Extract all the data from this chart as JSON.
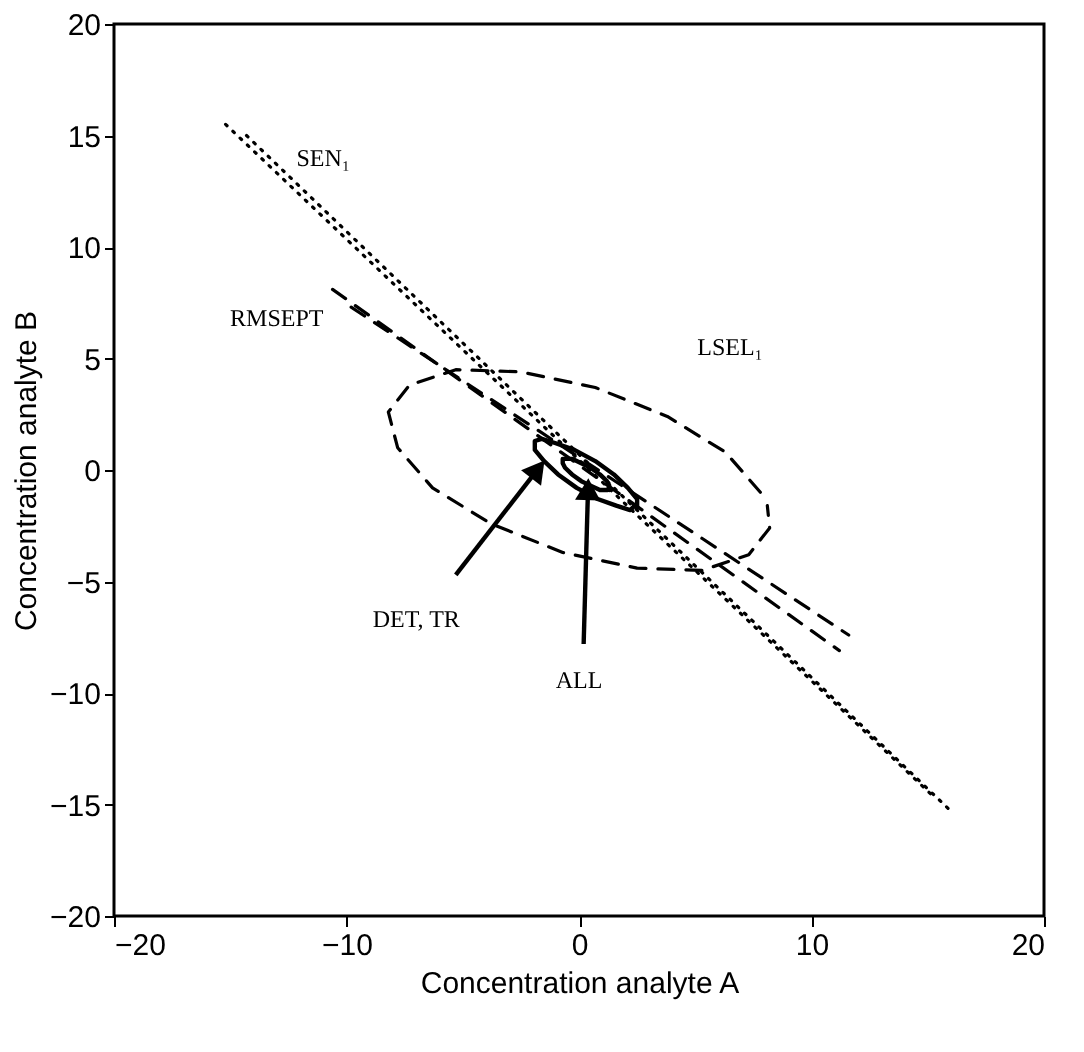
{
  "chart_data": {
    "type": "line",
    "xlabel": "Concentration analyte A",
    "ylabel": "Concentration analyte B",
    "xlim": [
      -20,
      20
    ],
    "ylim": [
      -20,
      20
    ],
    "xticks": [
      -20,
      -10,
      0,
      10,
      20
    ],
    "yticks": [
      -20,
      -15,
      -10,
      -5,
      0,
      5,
      10,
      15,
      20
    ],
    "grid": false,
    "marker": "none",
    "series": [
      {
        "color": "#000000",
        "line_style": "dotted",
        "x": [
          -15.2,
          15.2
        ],
        "values": [
          15.5,
          -14.6
        ]
      },
      {
        "color": "#000000",
        "line_style": "dotted",
        "x": [
          -14.3,
          16.0
        ],
        "values": [
          15.0,
          -15.3
        ]
      },
      {
        "color": "#000000",
        "line_style": "dashed",
        "x": [
          -10.6,
          11.2
        ],
        "values": [
          8.1,
          -8.1
        ]
      },
      {
        "color": "#000000",
        "line_style": "dashed",
        "x": [
          -9.8,
          11.6
        ],
        "values": [
          7.3,
          -7.4
        ]
      },
      {
        "color": "#000000",
        "line_style": "dashed",
        "x": [
          7.8,
          6.3,
          3.8,
          0.7,
          -2.5,
          -5.3,
          -7.3,
          -8.2,
          -7.8,
          -6.3,
          -3.8,
          -0.7,
          2.5,
          5.3,
          7.3,
          8.2,
          8.1
        ],
        "values": [
          -1.0,
          0.8,
          2.4,
          3.7,
          4.4,
          4.5,
          3.8,
          2.6,
          1.0,
          -0.8,
          -2.4,
          -3.7,
          -4.4,
          -4.5,
          -3.8,
          -2.6,
          -1.6
        ]
      },
      {
        "color": "#000000",
        "line_style": "solid",
        "x": [
          2.5,
          2.5,
          2.1,
          1.5,
          0.7,
          -0.2,
          -1.0,
          -1.6,
          -1.9,
          -1.9,
          -1.5,
          -0.9,
          -0.1,
          0.8,
          1.6,
          2.2,
          2.4
        ],
        "values": [
          -1.7,
          -1.3,
          -0.8,
          -0.2,
          0.4,
          0.9,
          1.2,
          1.4,
          1.3,
          0.9,
          0.4,
          -0.2,
          -0.8,
          -1.3,
          -1.6,
          -1.8,
          -1.6
        ]
      },
      {
        "color": "#000000",
        "line_style": "solid",
        "x": [
          1.3,
          1.3,
          1.2,
          0.9,
          0.5,
          0.1,
          -0.3,
          -0.6,
          -0.7,
          -0.7,
          -0.6,
          -0.3,
          0.1,
          0.5,
          0.9,
          1.2,
          1.3
        ],
        "values": [
          -0.9,
          -0.7,
          -0.5,
          -0.2,
          0.1,
          0.3,
          0.5,
          0.5,
          0.5,
          0.3,
          0.1,
          -0.2,
          -0.5,
          -0.7,
          -0.9,
          -0.9,
          -0.8
        ]
      }
    ],
    "annotations": [
      "SEN₁",
      "RMSEPT",
      "LSEL₁",
      {
        "text": "DET, TR",
        "x": -1.5,
        "y": 0.4
      },
      {
        "text": "ALL",
        "x": 0.4,
        "y": -0.4
      }
    ]
  }
}
